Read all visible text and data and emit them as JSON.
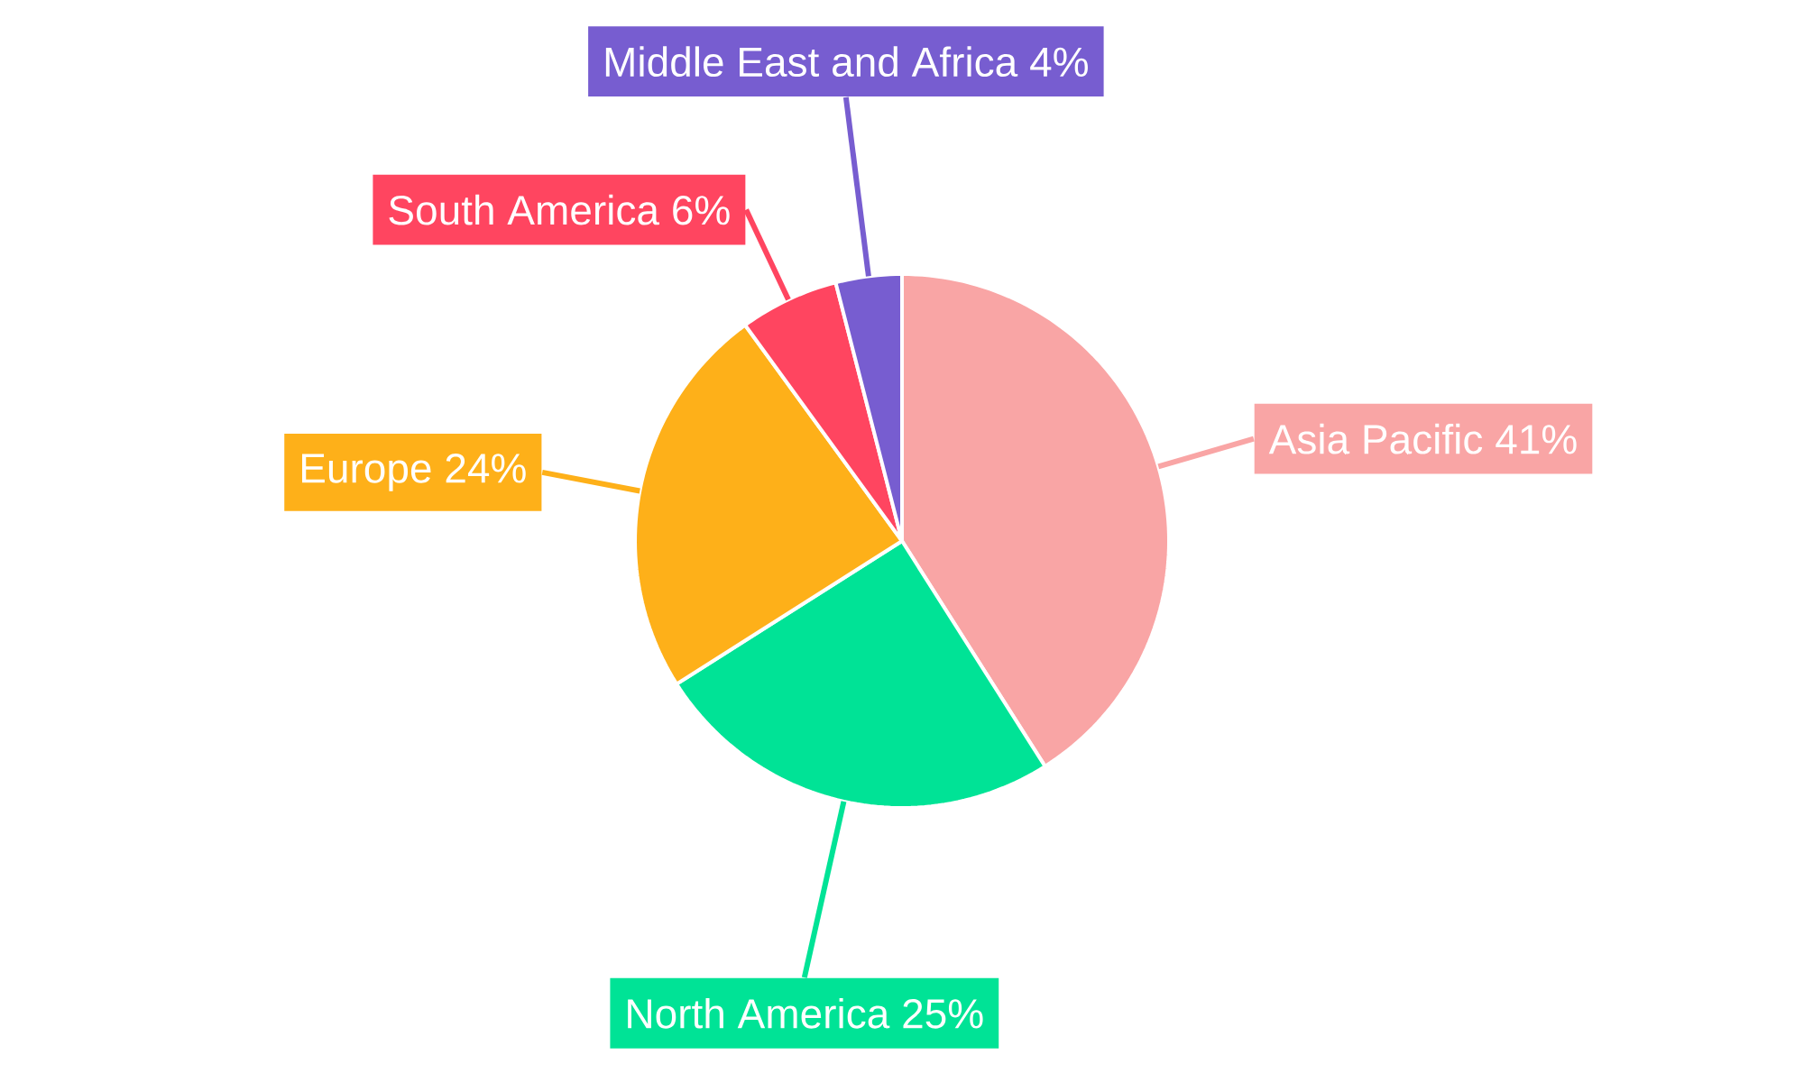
{
  "chart_data": {
    "type": "pie",
    "categories": [
      "Asia Pacific",
      "North America",
      "Europe",
      "South America",
      "Middle East and Africa"
    ],
    "values": [
      41,
      25,
      24,
      6,
      4
    ],
    "value_labels": [
      "41%",
      "25%",
      "24%",
      "6%",
      "4%"
    ],
    "colors": [
      "#f9a5a5",
      "#00e396",
      "#feb019",
      "#ff4560",
      "#775dd0"
    ]
  }
}
